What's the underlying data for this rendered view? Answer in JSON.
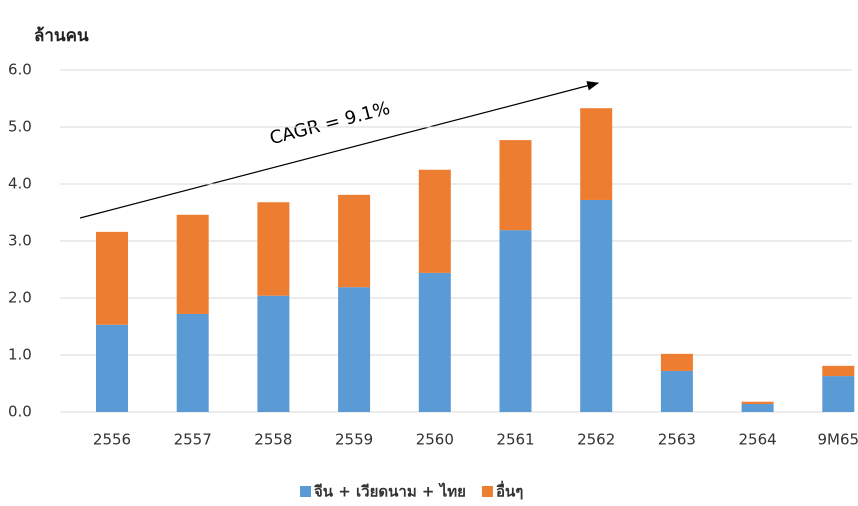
{
  "chart_data": {
    "type": "stacked_bar",
    "title": "ล้านคน",
    "annotation": "CAGR = 9.1%",
    "categories": [
      "2556",
      "2557",
      "2558",
      "2559",
      "2560",
      "2561",
      "2562",
      "2563",
      "2564",
      "9M65"
    ],
    "series": [
      {
        "name": "จีน + เวียดนาม + ไทย",
        "color": "#5b9bd5",
        "values": [
          1.53,
          1.72,
          2.04,
          2.19,
          2.44,
          3.19,
          3.72,
          0.72,
          0.14,
          0.63
        ]
      },
      {
        "name": "อื่นๆ",
        "color": "#ed7d31",
        "values": [
          1.63,
          1.74,
          1.64,
          1.62,
          1.81,
          1.58,
          1.61,
          0.3,
          0.04,
          0.18
        ]
      }
    ],
    "ylim": [
      0,
      6
    ],
    "yticks": [
      {
        "value": 0,
        "label": "0.0"
      },
      {
        "value": 1,
        "label": "1.0"
      },
      {
        "value": 2,
        "label": "2.0"
      },
      {
        "value": 3,
        "label": "3.0"
      },
      {
        "value": 4,
        "label": "4.0"
      },
      {
        "value": 5,
        "label": "5.0"
      },
      {
        "value": 6,
        "label": "6.0"
      }
    ],
    "grid": true,
    "legend": "bottom"
  }
}
